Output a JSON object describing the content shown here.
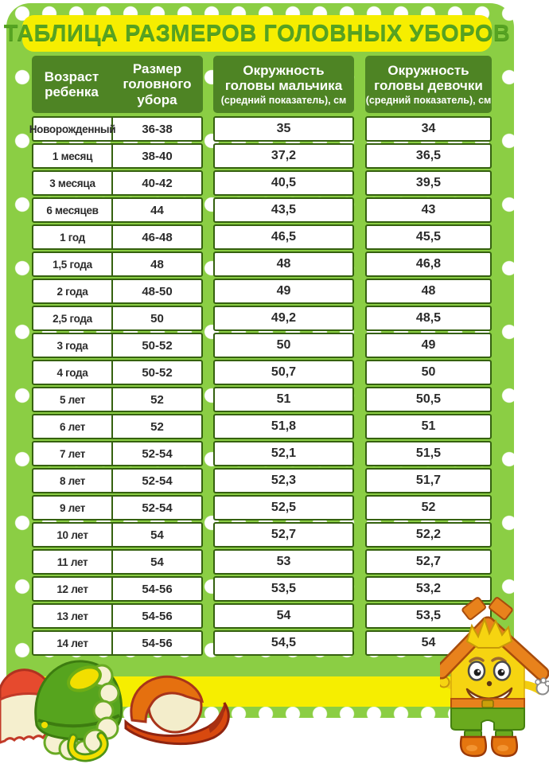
{
  "title": "ТАБЛИЦА РАЗМЕРОВ ГОЛОВНЫХ УБОРОВ",
  "table": {
    "headers": [
      {
        "lines": [
          "Возраст",
          "ребенка"
        ],
        "sub": ""
      },
      {
        "lines": [
          "Размер",
          "головного",
          "убора"
        ],
        "sub": ""
      },
      {
        "lines": [
          "Окружность",
          "головы мальчика"
        ],
        "sub": "(средний показатель), см"
      },
      {
        "lines": [
          "Окружность",
          "головы девочки"
        ],
        "sub": "(средний показатель), см"
      }
    ],
    "rows": [
      [
        "Новорожденный",
        "36-38",
        "35",
        "34"
      ],
      [
        "1 месяц",
        "38-40",
        "37,2",
        "36,5"
      ],
      [
        "3 месяца",
        "40-42",
        "40,5",
        "39,5"
      ],
      [
        "6 месяцев",
        "44",
        "43,5",
        "43"
      ],
      [
        "1 год",
        "46-48",
        "46,5",
        "45,5"
      ],
      [
        "1,5 года",
        "48",
        "48",
        "46,8"
      ],
      [
        "2 года",
        "48-50",
        "49",
        "48"
      ],
      [
        "2,5 года",
        "50",
        "49,2",
        "48,5"
      ],
      [
        "3 года",
        "50-52",
        "50",
        "49"
      ],
      [
        "4 года",
        "50-52",
        "50,7",
        "50"
      ],
      [
        "5 лет",
        "52",
        "51",
        "50,5"
      ],
      [
        "6 лет",
        "52",
        "51,8",
        "51"
      ],
      [
        "7 лет",
        "52-54",
        "52,1",
        "51,5"
      ],
      [
        "8 лет",
        "52-54",
        "52,3",
        "51,7"
      ],
      [
        "9 лет",
        "52-54",
        "52,5",
        "52"
      ],
      [
        "10 лет",
        "54",
        "52,7",
        "52,2"
      ],
      [
        "11 лет",
        "54",
        "53",
        "52,7"
      ],
      [
        "12 лет",
        "54-56",
        "53,5",
        "53,2"
      ],
      [
        "13 лет",
        "54-56",
        "54",
        "53,5"
      ],
      [
        "14 лет",
        "54-56",
        "54,5",
        "54"
      ]
    ]
  },
  "decorations": {
    "left_icons": [
      "red-knitted-hat-icon",
      "green-winter-hat-icon",
      "orange-baseball-cap-icon"
    ],
    "right_icon": "house-mascot-character-icon"
  },
  "colors": {
    "board_green": "#8bce44",
    "header_green": "#4e8424",
    "cell_border_green": "#35610f",
    "banner_yellow": "#f6ee00",
    "title_text_green": "#56a322",
    "cell_text": "#2b2b2b",
    "dot_white": "#ffffff"
  }
}
